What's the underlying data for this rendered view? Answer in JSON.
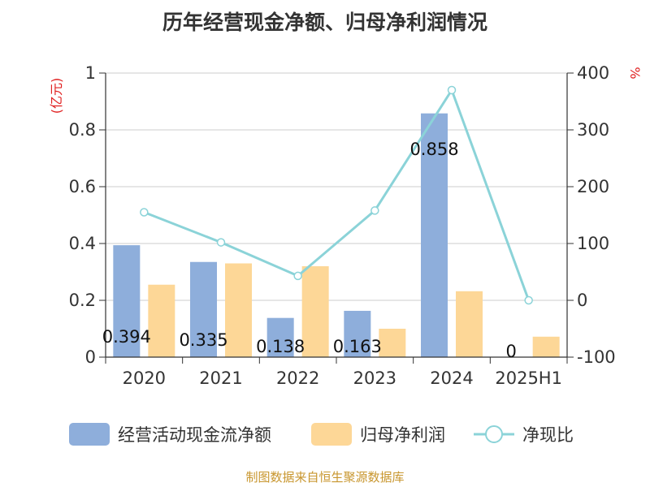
{
  "source_note": "制图数据来自恒生聚源数据库",
  "chart_data": {
    "type": "bar",
    "title": "历年经营现金净额、归母净利润情况",
    "categories": [
      "2020",
      "2021",
      "2022",
      "2023",
      "2024",
      "2025H1"
    ],
    "series": [
      {
        "name": "经营活动现金流净额",
        "type": "bar",
        "axis": "left",
        "color": "#8eaedb",
        "values": [
          0.394,
          0.335,
          0.138,
          0.163,
          0.858,
          0
        ],
        "labels": [
          "0.394",
          "0.335",
          "0.138",
          "0.163",
          "0.858",
          "0"
        ]
      },
      {
        "name": "归母净利润",
        "type": "bar",
        "axis": "left",
        "color": "#fdd797",
        "values": [
          0.255,
          0.33,
          0.32,
          0.1,
          0.232,
          0.072
        ]
      },
      {
        "name": "净现比",
        "type": "line",
        "axis": "right",
        "color": "#8bd3d8",
        "values": [
          155,
          102,
          43,
          158,
          370,
          0
        ]
      }
    ],
    "y_left": {
      "label": "(亿元)",
      "lim": [
        0,
        1
      ],
      "ticks": [
        0,
        0.2,
        0.4,
        0.6,
        0.8,
        1
      ],
      "tick_labels": [
        "0",
        "0.2",
        "0.4",
        "0.6",
        "0.8",
        "1"
      ]
    },
    "y_right": {
      "label": "%",
      "lim": [
        -100,
        400
      ],
      "ticks": [
        -100,
        0,
        100,
        200,
        300,
        400
      ],
      "tick_labels": [
        "-100",
        "0",
        "100",
        "200",
        "300",
        "400"
      ]
    },
    "grid": true,
    "legend_position": "bottom"
  }
}
